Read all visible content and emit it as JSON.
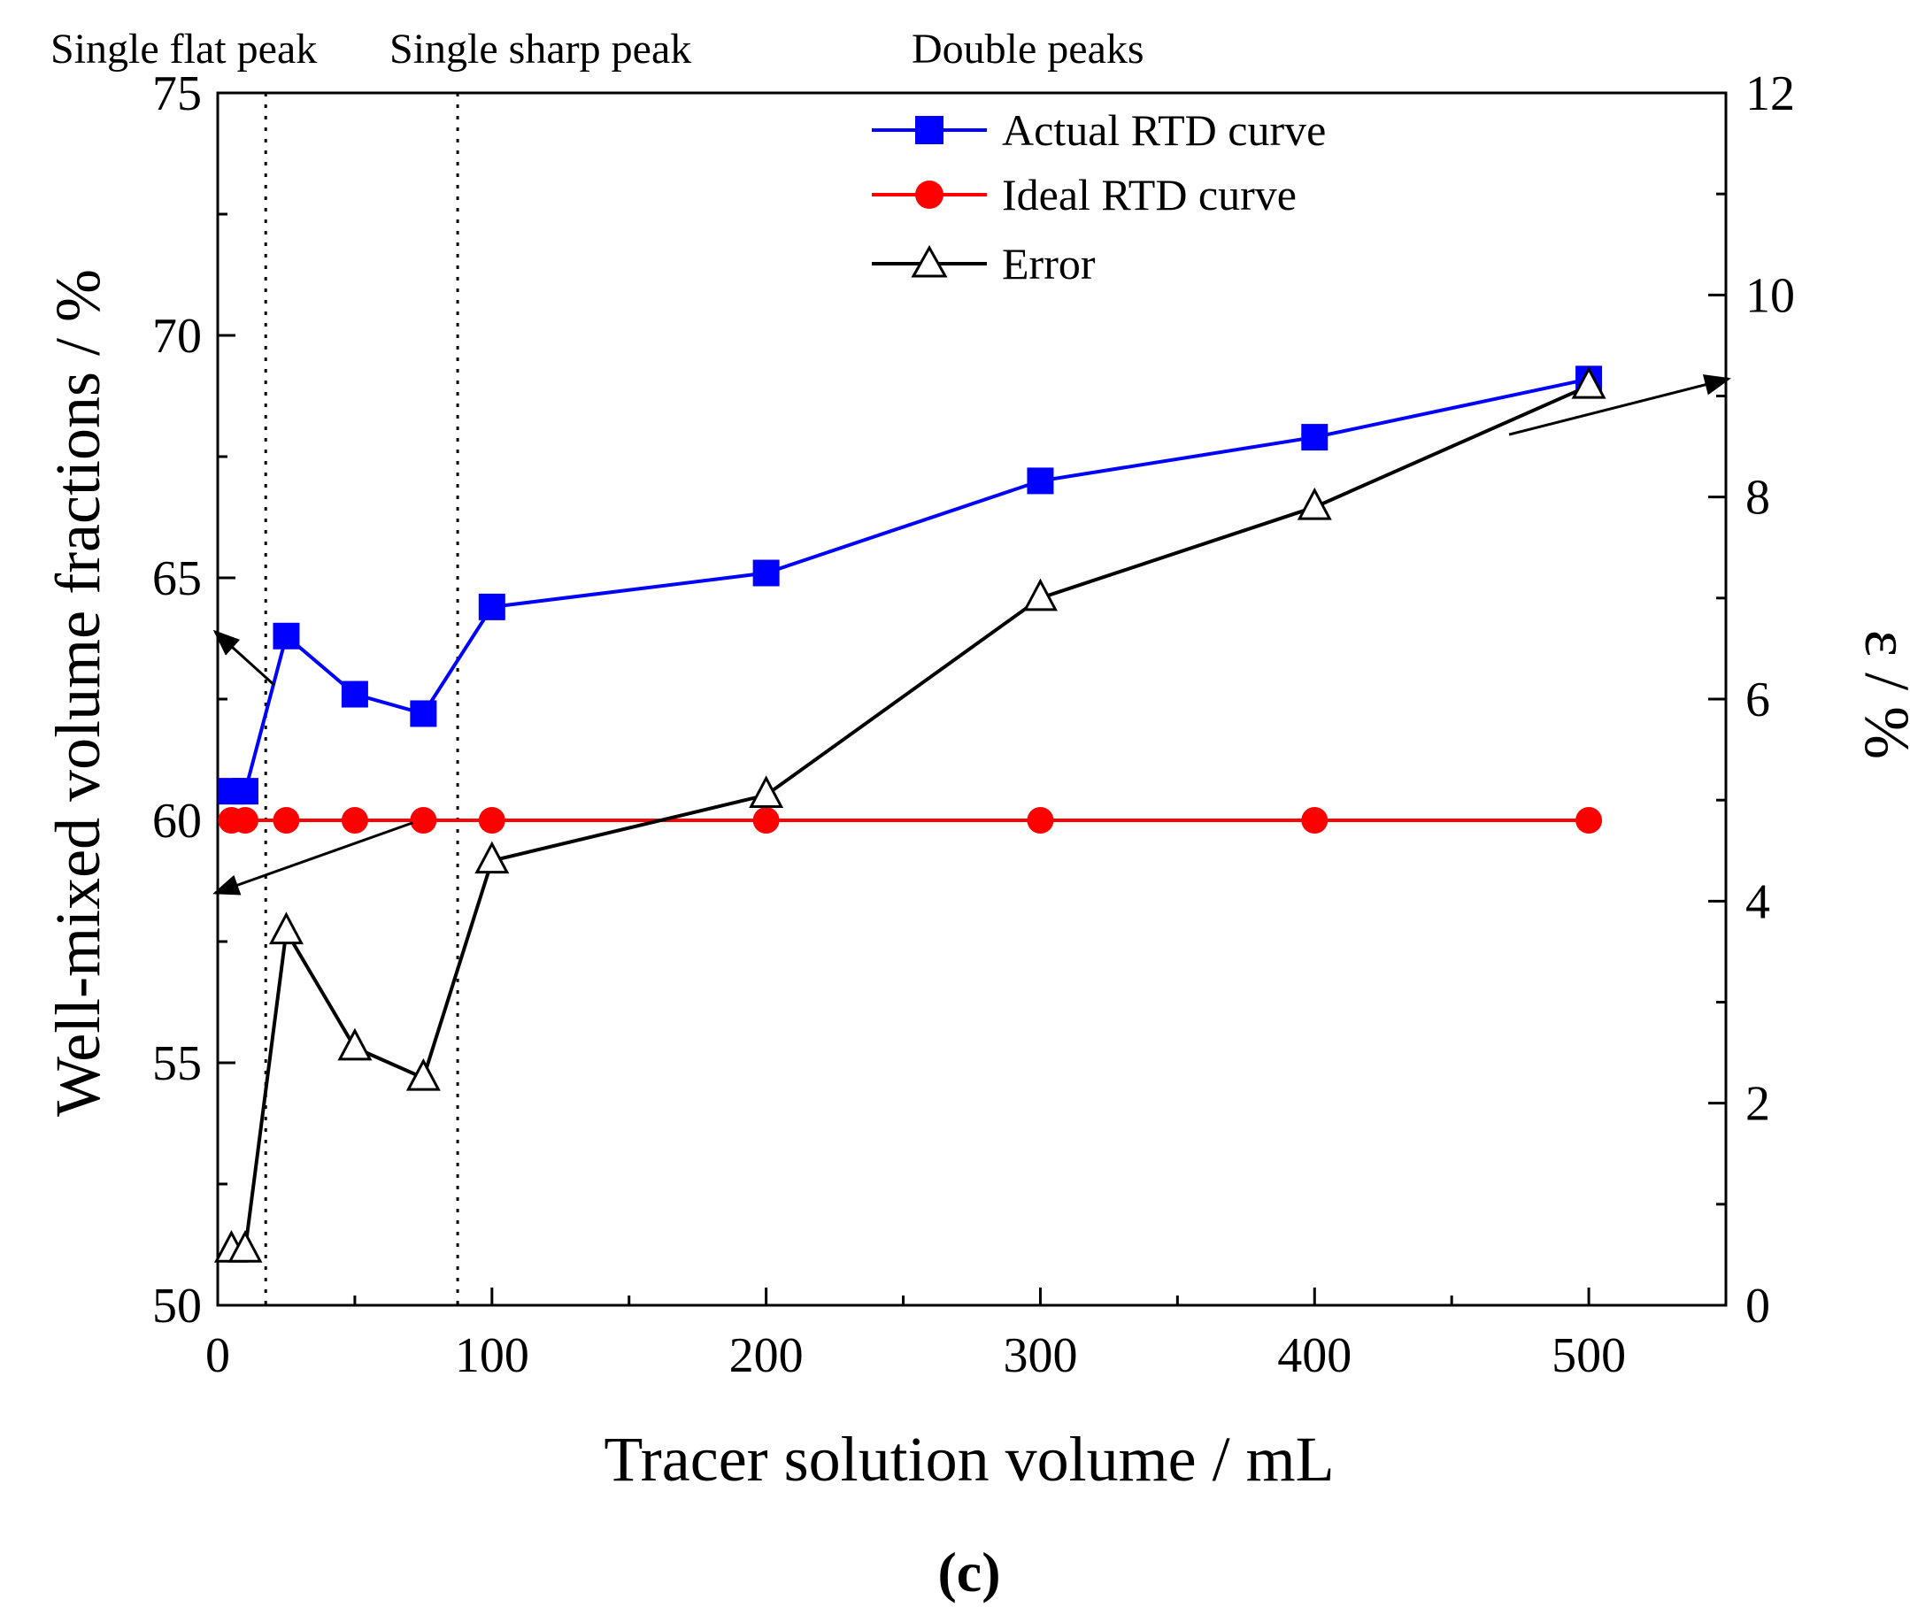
{
  "chart_data": {
    "type": "line",
    "title": "",
    "panel_label": "(c)",
    "region_labels": [
      "Single flat peak",
      "Single sharp peak",
      "Double peaks"
    ],
    "region_boundaries": [
      17.5,
      87.5
    ],
    "xlabel": "Tracer solution volume / mL",
    "ylabel": "Well-mixed volume fractions / %",
    "y2label": "ε / %",
    "xlim": [
      0,
      550
    ],
    "ylim": [
      50,
      75
    ],
    "y2lim": [
      0,
      12
    ],
    "xticks": [
      0,
      100,
      200,
      300,
      400,
      500
    ],
    "yticks": [
      50,
      55,
      60,
      65,
      70,
      75
    ],
    "y2ticks": [
      0,
      2,
      4,
      6,
      8,
      10,
      12
    ],
    "legend_position": "top-right",
    "x": [
      5,
      10,
      25,
      50,
      75,
      100,
      200,
      300,
      400,
      500
    ],
    "series": [
      {
        "name": "Actual RTD curve",
        "axis": "left",
        "color": "#0000ff",
        "marker": "square",
        "values": [
          60.6,
          60.6,
          63.8,
          62.6,
          62.2,
          64.4,
          65.1,
          67.0,
          67.9,
          69.1
        ]
      },
      {
        "name": "Ideal RTD curve",
        "axis": "left",
        "color": "#ff0000",
        "marker": "circle",
        "values": [
          60.0,
          60.0,
          60.0,
          60.0,
          60.0,
          60.0,
          60.0,
          60.0,
          60.0,
          60.0
        ]
      },
      {
        "name": "Error",
        "axis": "right",
        "color": "#000000",
        "marker": "triangle-open",
        "values": [
          0.55,
          0.55,
          3.7,
          2.55,
          2.25,
          4.4,
          5.05,
          7.0,
          7.9,
          9.1
        ]
      }
    ]
  }
}
